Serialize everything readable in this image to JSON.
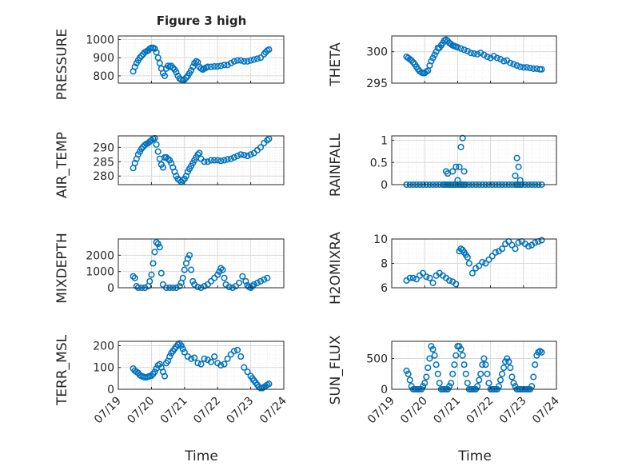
{
  "figure": {
    "title": "Figure 3 high"
  },
  "shared": {
    "xlabel": "Time",
    "xticks": [
      "07/19",
      "07/20",
      "07/21",
      "07/22",
      "07/23",
      "07/24"
    ]
  },
  "chart_data": [
    {
      "type": "scatter",
      "ylabel": "PRESSURE",
      "ylim": [
        760,
        1020
      ],
      "yticks": [
        "800",
        "900",
        "1000"
      ],
      "xlim": [
        0,
        5
      ],
      "color": "#0072BD",
      "grid": true,
      "x": [
        0.45,
        0.5,
        0.55,
        0.6,
        0.65,
        0.7,
        0.75,
        0.8,
        0.85,
        0.9,
        0.95,
        1.0,
        1.05,
        1.1,
        1.15,
        1.2,
        1.25,
        1.3,
        1.35,
        1.4,
        1.45,
        1.5,
        1.55,
        1.6,
        1.65,
        1.7,
        1.75,
        1.8,
        1.85,
        1.9,
        1.95,
        2.0,
        2.05,
        2.1,
        2.15,
        2.2,
        2.25,
        2.3,
        2.35,
        2.4,
        2.45,
        2.5,
        2.55,
        2.6,
        2.65,
        2.7,
        2.8,
        2.9,
        3.0,
        3.1,
        3.2,
        3.3,
        3.4,
        3.5,
        3.6,
        3.7,
        3.8,
        3.9,
        4.0,
        4.1,
        4.2,
        4.3,
        4.4,
        4.45,
        4.5,
        4.55
      ],
      "y": [
        825,
        850,
        870,
        885,
        900,
        910,
        920,
        930,
        935,
        940,
        950,
        955,
        955,
        950,
        930,
        900,
        870,
        840,
        815,
        800,
        840,
        855,
        850,
        855,
        845,
        835,
        820,
        800,
        785,
        780,
        775,
        780,
        790,
        800,
        815,
        830,
        850,
        870,
        880,
        875,
        850,
        840,
        835,
        840,
        845,
        850,
        850,
        852,
        852,
        855,
        860,
        860,
        870,
        880,
        885,
        885,
        880,
        880,
        885,
        890,
        895,
        900,
        920,
        930,
        940,
        945
      ]
    },
    {
      "type": "scatter",
      "ylabel": "THETA",
      "ylim": [
        295,
        302.5
      ],
      "yticks": [
        "295",
        "300"
      ],
      "xlim": [
        0,
        5
      ],
      "color": "#0072BD",
      "grid": true,
      "x": [
        0.45,
        0.5,
        0.55,
        0.6,
        0.65,
        0.7,
        0.75,
        0.8,
        0.85,
        0.9,
        0.95,
        1.0,
        1.05,
        1.1,
        1.15,
        1.2,
        1.25,
        1.3,
        1.35,
        1.4,
        1.45,
        1.5,
        1.55,
        1.6,
        1.65,
        1.7,
        1.75,
        1.8,
        1.85,
        1.9,
        1.95,
        2.0,
        2.1,
        2.2,
        2.3,
        2.4,
        2.5,
        2.6,
        2.7,
        2.8,
        2.9,
        3.0,
        3.1,
        3.2,
        3.3,
        3.4,
        3.5,
        3.6,
        3.7,
        3.8,
        3.9,
        4.0,
        4.1,
        4.2,
        4.3,
        4.4,
        4.5,
        4.55
      ],
      "y": [
        299.2,
        299.0,
        298.8,
        298.6,
        298.3,
        298.0,
        297.6,
        297.2,
        296.9,
        296.7,
        296.6,
        296.6,
        296.8,
        297.0,
        297.8,
        298.5,
        299.0,
        299.5,
        300.0,
        300.6,
        300.6,
        301.0,
        301.4,
        301.8,
        301.9,
        301.7,
        301.4,
        301.2,
        301.0,
        300.9,
        300.8,
        300.7,
        300.5,
        300.3,
        300.1,
        299.8,
        299.7,
        299.6,
        299.8,
        299.5,
        299.2,
        299.0,
        299.3,
        299.0,
        298.8,
        298.5,
        298.6,
        298.2,
        298.0,
        297.8,
        297.6,
        297.5,
        297.5,
        297.4,
        297.3,
        297.3,
        297.2,
        297.2
      ]
    },
    {
      "type": "scatter",
      "ylabel": "AIR_TEMP",
      "ylim": [
        277,
        294
      ],
      "yticks": [
        "280",
        "285",
        "290"
      ],
      "xlim": [
        0,
        5
      ],
      "color": "#0072BD",
      "grid": true,
      "x": [
        0.45,
        0.5,
        0.55,
        0.6,
        0.65,
        0.7,
        0.75,
        0.8,
        0.85,
        0.9,
        0.95,
        1.0,
        1.05,
        1.1,
        1.15,
        1.2,
        1.25,
        1.3,
        1.35,
        1.4,
        1.45,
        1.5,
        1.55,
        1.6,
        1.65,
        1.7,
        1.75,
        1.8,
        1.85,
        1.9,
        1.95,
        2.0,
        2.05,
        2.1,
        2.15,
        2.2,
        2.25,
        2.3,
        2.35,
        2.4,
        2.45,
        2.5,
        2.6,
        2.7,
        2.8,
        2.9,
        3.0,
        3.1,
        3.2,
        3.3,
        3.4,
        3.5,
        3.6,
        3.7,
        3.8,
        3.9,
        4.0,
        4.1,
        4.2,
        4.3,
        4.4,
        4.5,
        4.55
      ],
      "y": [
        282.8,
        284.5,
        286.0,
        287.5,
        288.5,
        289.5,
        290.2,
        290.8,
        291.2,
        291.5,
        292.0,
        292.5,
        293.0,
        293.2,
        291.0,
        288.5,
        286.0,
        284.0,
        283.0,
        286.5,
        286.5,
        286.0,
        285.5,
        284.5,
        283.0,
        281.5,
        280.0,
        279.0,
        278.5,
        278.0,
        278.5,
        279.0,
        280.0,
        281.5,
        282.5,
        283.5,
        284.5,
        285.5,
        286.5,
        287.5,
        288.0,
        286.0,
        285.0,
        285.0,
        285.5,
        285.5,
        285.5,
        285.3,
        285.5,
        285.8,
        286.0,
        286.5,
        287.0,
        287.5,
        287.3,
        287.0,
        287.5,
        288.0,
        289.0,
        290.0,
        291.5,
        292.5,
        293.0
      ]
    },
    {
      "type": "scatter",
      "ylabel": "RAINFALL",
      "ylim": [
        0,
        1.1
      ],
      "yticks": [
        "0",
        "0.5",
        "1"
      ],
      "xlim": [
        0,
        5
      ],
      "color": "#0072BD",
      "grid": true,
      "x": [
        0.45,
        0.55,
        0.65,
        0.75,
        0.85,
        0.95,
        1.05,
        1.15,
        1.25,
        1.35,
        1.45,
        1.55,
        1.6,
        1.65,
        1.7,
        1.75,
        1.8,
        1.85,
        1.9,
        1.95,
        2.0,
        2.05,
        2.1,
        2.15,
        2.2,
        2.25,
        2.35,
        2.45,
        2.55,
        2.65,
        2.75,
        2.85,
        2.95,
        3.05,
        3.15,
        3.25,
        3.35,
        3.45,
        3.55,
        3.65,
        3.75,
        3.8,
        3.85,
        3.9,
        3.95,
        4.05,
        4.15,
        4.25,
        4.35,
        4.45,
        4.55,
        1.65,
        1.7,
        1.85,
        1.95,
        2.0,
        2.05,
        2.1,
        2.15,
        2.2,
        3.75,
        3.8,
        3.85,
        3.9
      ],
      "y": [
        0,
        0,
        0,
        0,
        0,
        0,
        0,
        0,
        0,
        0,
        0,
        0,
        0,
        0,
        0,
        0,
        0,
        0,
        0,
        0,
        0,
        0,
        0,
        0,
        0,
        0,
        0,
        0,
        0,
        0,
        0,
        0,
        0,
        0,
        0,
        0,
        0,
        0,
        0,
        0,
        0,
        0,
        0,
        0,
        0,
        0,
        0,
        0,
        0,
        0,
        0,
        0.3,
        0.25,
        0.3,
        0.4,
        0.1,
        0.4,
        0.85,
        1.05,
        0.3,
        0.2,
        0.6,
        0.4,
        0.1
      ]
    },
    {
      "type": "scatter",
      "ylabel": "MIXDEPTH",
      "ylim": [
        0,
        3000
      ],
      "yticks": [
        "0",
        "1000",
        "2000"
      ],
      "xlim": [
        0,
        5
      ],
      "color": "#0072BD",
      "grid": true,
      "x": [
        0.45,
        0.5,
        0.55,
        0.6,
        0.7,
        0.8,
        0.9,
        0.95,
        1.0,
        1.05,
        1.1,
        1.15,
        1.2,
        1.25,
        1.3,
        1.35,
        1.45,
        1.55,
        1.65,
        1.75,
        1.85,
        1.9,
        1.95,
        2.0,
        2.05,
        2.1,
        2.15,
        2.2,
        2.25,
        2.3,
        2.4,
        2.5,
        2.6,
        2.7,
        2.8,
        2.9,
        3.0,
        3.05,
        3.1,
        3.15,
        3.2,
        3.25,
        3.35,
        3.45,
        3.55,
        3.65,
        3.75,
        3.85,
        3.9,
        3.95,
        4.0,
        4.05,
        4.1,
        4.2,
        4.3,
        4.4,
        4.5
      ],
      "y": [
        700,
        600,
        100,
        0,
        0,
        0,
        100,
        400,
        800,
        1500,
        2200,
        2800,
        2700,
        2500,
        900,
        200,
        0,
        0,
        0,
        0,
        100,
        300,
        600,
        1100,
        1500,
        1800,
        2000,
        1100,
        400,
        200,
        50,
        0,
        100,
        200,
        400,
        600,
        800,
        1000,
        1200,
        1100,
        600,
        200,
        50,
        0,
        100,
        300,
        700,
        400,
        150,
        50,
        0,
        100,
        200,
        300,
        400,
        500,
        600
      ]
    },
    {
      "type": "scatter",
      "ylabel": "H2OMIXRA",
      "ylim": [
        6,
        10
      ],
      "yticks": [
        "6",
        "8",
        "10"
      ],
      "xlim": [
        0,
        5
      ],
      "color": "#0072BD",
      "grid": true,
      "x": [
        0.45,
        0.55,
        0.65,
        0.75,
        0.85,
        0.95,
        1.05,
        1.15,
        1.25,
        1.35,
        1.45,
        1.55,
        1.65,
        1.75,
        1.85,
        1.95,
        2.05,
        2.1,
        2.15,
        2.2,
        2.25,
        2.3,
        2.35,
        2.45,
        2.55,
        2.65,
        2.75,
        2.85,
        2.95,
        3.05,
        3.15,
        3.25,
        3.35,
        3.45,
        3.55,
        3.65,
        3.75,
        3.85,
        3.95,
        4.05,
        4.15,
        4.25,
        4.35,
        4.45,
        4.55
      ],
      "y": [
        6.6,
        6.8,
        6.8,
        6.7,
        7.0,
        7.2,
        6.9,
        6.8,
        6.4,
        7.0,
        7.2,
        7.0,
        6.8,
        6.6,
        6.5,
        6.3,
        9.0,
        9.2,
        9.1,
        8.9,
        8.7,
        8.5,
        8.0,
        7.2,
        7.6,
        7.8,
        8.1,
        8.0,
        8.3,
        8.6,
        8.9,
        9.0,
        9.2,
        9.6,
        9.8,
        9.5,
        9.2,
        9.7,
        9.8,
        9.6,
        9.4,
        9.5,
        9.7,
        9.8,
        9.9
      ]
    },
    {
      "type": "scatter",
      "ylabel": "TERR_MSL",
      "ylim": [
        0,
        220
      ],
      "yticks": [
        "0",
        "100",
        "200"
      ],
      "xlim": [
        0,
        5
      ],
      "color": "#0072BD",
      "grid": true,
      "x": [
        0.45,
        0.5,
        0.55,
        0.6,
        0.65,
        0.7,
        0.75,
        0.8,
        0.85,
        0.9,
        0.95,
        1.0,
        1.05,
        1.1,
        1.15,
        1.2,
        1.25,
        1.3,
        1.35,
        1.4,
        1.45,
        1.5,
        1.55,
        1.6,
        1.65,
        1.7,
        1.75,
        1.8,
        1.85,
        1.9,
        1.95,
        2.0,
        2.1,
        2.2,
        2.3,
        2.4,
        2.5,
        2.6,
        2.7,
        2.8,
        2.9,
        3.0,
        3.1,
        3.2,
        3.3,
        3.4,
        3.5,
        3.6,
        3.7,
        3.8,
        3.9,
        4.0,
        4.05,
        4.1,
        4.15,
        4.2,
        4.25,
        4.3,
        4.35,
        4.4,
        4.45,
        4.5,
        4.55
      ],
      "y": [
        95,
        85,
        80,
        75,
        65,
        60,
        58,
        55,
        55,
        58,
        60,
        62,
        70,
        80,
        95,
        110,
        115,
        100,
        80,
        60,
        120,
        130,
        150,
        165,
        175,
        185,
        195,
        205,
        210,
        200,
        185,
        170,
        150,
        140,
        145,
        120,
        115,
        140,
        135,
        125,
        150,
        120,
        110,
        115,
        140,
        160,
        175,
        180,
        150,
        100,
        80,
        60,
        50,
        40,
        30,
        20,
        10,
        5,
        5,
        10,
        15,
        20,
        25
      ]
    },
    {
      "type": "scatter",
      "ylabel": "SUN_FLUX",
      "ylim": [
        0,
        780
      ],
      "yticks": [
        "0",
        "500"
      ],
      "xlim": [
        0,
        5
      ],
      "color": "#0072BD",
      "grid": true,
      "x": [
        0.45,
        0.5,
        0.55,
        0.6,
        0.65,
        0.7,
        0.75,
        0.8,
        0.85,
        0.9,
        0.95,
        1.0,
        1.05,
        1.1,
        1.15,
        1.2,
        1.25,
        1.3,
        1.35,
        1.4,
        1.45,
        1.5,
        1.55,
        1.6,
        1.65,
        1.7,
        1.75,
        1.8,
        1.85,
        1.9,
        1.95,
        2.0,
        2.05,
        2.1,
        2.15,
        2.2,
        2.25,
        2.3,
        2.35,
        2.4,
        2.45,
        2.5,
        2.55,
        2.6,
        2.65,
        2.7,
        2.75,
        2.8,
        2.85,
        2.9,
        2.95,
        3.0,
        3.05,
        3.1,
        3.15,
        3.2,
        3.25,
        3.3,
        3.35,
        3.4,
        3.45,
        3.5,
        3.55,
        3.6,
        3.65,
        3.7,
        3.75,
        3.8,
        3.85,
        3.9,
        3.95,
        4.0,
        4.05,
        4.1,
        4.15,
        4.2,
        4.25,
        4.3,
        4.35,
        4.4,
        4.45,
        4.5,
        4.55
      ],
      "y": [
        300,
        250,
        150,
        50,
        0,
        0,
        0,
        0,
        0,
        0,
        50,
        100,
        200,
        350,
        500,
        700,
        650,
        550,
        400,
        250,
        100,
        0,
        0,
        0,
        0,
        0,
        50,
        100,
        250,
        400,
        550,
        700,
        700,
        650,
        550,
        400,
        250,
        100,
        0,
        0,
        0,
        0,
        0,
        50,
        150,
        250,
        400,
        500,
        400,
        250,
        100,
        0,
        0,
        0,
        0,
        0,
        50,
        150,
        250,
        350,
        450,
        500,
        450,
        350,
        200,
        100,
        50,
        0,
        0,
        0,
        0,
        0,
        0,
        0,
        0,
        0,
        50,
        200,
        400,
        550,
        600,
        620,
        600
      ]
    }
  ]
}
